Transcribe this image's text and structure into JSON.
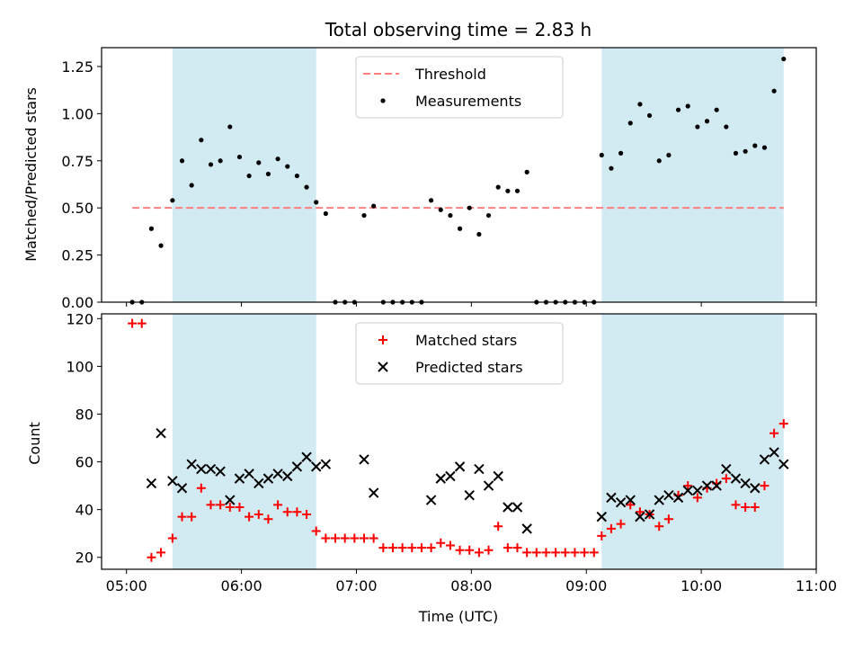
{
  "chart_data": [
    {
      "type": "scatter",
      "title": "Total observing time = 2.83 h",
      "ylabel": "Matched/Predicted stars",
      "xlabel": "",
      "xlim": [
        "04:47",
        "11:00"
      ],
      "ylim": [
        0,
        1.35
      ],
      "yticks": [
        0.0,
        0.25,
        0.5,
        0.75,
        1.0,
        1.25
      ],
      "ytick_labels": [
        "0.00",
        "0.25",
        "0.50",
        "0.75",
        "1.00",
        "1.25"
      ],
      "shaded_intervals": [
        [
          "05:24",
          "06:39"
        ],
        [
          "09:08",
          "10:43"
        ]
      ],
      "shade_color": "#add8e6",
      "threshold": {
        "label": "Threshold",
        "value": 0.5,
        "from": "05:03",
        "to": "10:43",
        "color": "#ff7f7f"
      },
      "legend": {
        "placement": "upper-center",
        "entries": [
          "Threshold",
          "Measurements"
        ]
      },
      "series": [
        {
          "name": "Measurements",
          "marker": "dot",
          "color": "#000000",
          "points": [
            [
              "05:03",
              0.0
            ],
            [
              "05:08",
              0.0
            ],
            [
              "05:13",
              0.39
            ],
            [
              "05:18",
              0.3
            ],
            [
              "05:24",
              0.54
            ],
            [
              "05:29",
              0.75
            ],
            [
              "05:34",
              0.62
            ],
            [
              "05:39",
              0.86
            ],
            [
              "05:44",
              0.73
            ],
            [
              "05:49",
              0.75
            ],
            [
              "05:54",
              0.93
            ],
            [
              "05:59",
              0.77
            ],
            [
              "06:04",
              0.67
            ],
            [
              "06:09",
              0.74
            ],
            [
              "06:14",
              0.68
            ],
            [
              "06:19",
              0.76
            ],
            [
              "06:24",
              0.72
            ],
            [
              "06:29",
              0.67
            ],
            [
              "06:34",
              0.61
            ],
            [
              "06:39",
              0.53
            ],
            [
              "06:44",
              0.47
            ],
            [
              "06:49",
              0.0
            ],
            [
              "06:54",
              0.0
            ],
            [
              "06:59",
              0.0
            ],
            [
              "07:04",
              0.46
            ],
            [
              "07:09",
              0.51
            ],
            [
              "07:14",
              0.0
            ],
            [
              "07:19",
              0.0
            ],
            [
              "07:24",
              0.0
            ],
            [
              "07:29",
              0.0
            ],
            [
              "07:34",
              0.0
            ],
            [
              "07:39",
              0.54
            ],
            [
              "07:44",
              0.49
            ],
            [
              "07:49",
              0.46
            ],
            [
              "07:54",
              0.39
            ],
            [
              "07:59",
              0.5
            ],
            [
              "08:04",
              0.36
            ],
            [
              "08:09",
              0.46
            ],
            [
              "08:14",
              0.61
            ],
            [
              "08:19",
              0.59
            ],
            [
              "08:24",
              0.59
            ],
            [
              "08:29",
              0.69
            ],
            [
              "08:34",
              0.0
            ],
            [
              "08:39",
              0.0
            ],
            [
              "08:44",
              0.0
            ],
            [
              "08:49",
              0.0
            ],
            [
              "08:54",
              0.0
            ],
            [
              "08:59",
              0.0
            ],
            [
              "09:04",
              0.0
            ],
            [
              "09:08",
              0.78
            ],
            [
              "09:13",
              0.71
            ],
            [
              "09:18",
              0.79
            ],
            [
              "09:23",
              0.95
            ],
            [
              "09:28",
              1.05
            ],
            [
              "09:33",
              0.99
            ],
            [
              "09:38",
              0.75
            ],
            [
              "09:43",
              0.78
            ],
            [
              "09:48",
              1.02
            ],
            [
              "09:53",
              1.04
            ],
            [
              "09:58",
              0.93
            ],
            [
              "10:03",
              0.96
            ],
            [
              "10:08",
              1.02
            ],
            [
              "10:13",
              0.93
            ],
            [
              "10:18",
              0.79
            ],
            [
              "10:23",
              0.8
            ],
            [
              "10:28",
              0.83
            ],
            [
              "10:33",
              0.82
            ],
            [
              "10:38",
              1.12
            ],
            [
              "10:43",
              1.29
            ]
          ]
        }
      ]
    },
    {
      "type": "scatter",
      "title": "",
      "ylabel": "Count",
      "xlabel": "Time (UTC)",
      "xlim": [
        "04:47",
        "11:00"
      ],
      "xticks": [
        "05:00",
        "06:00",
        "07:00",
        "08:00",
        "09:00",
        "10:00",
        "11:00"
      ],
      "ylim": [
        15,
        122
      ],
      "yticks": [
        20,
        40,
        60,
        80,
        100,
        120
      ],
      "shaded_intervals": [
        [
          "05:24",
          "06:39"
        ],
        [
          "09:08",
          "10:43"
        ]
      ],
      "shade_color": "#add8e6",
      "legend": {
        "placement": "upper-center",
        "entries": [
          "Matched stars",
          "Predicted stars"
        ]
      },
      "series": [
        {
          "name": "Matched stars",
          "marker": "plus",
          "color": "#ff0000",
          "points": [
            [
              "05:03",
              118
            ],
            [
              "05:08",
              118
            ],
            [
              "05:13",
              20
            ],
            [
              "05:18",
              22
            ],
            [
              "05:24",
              28
            ],
            [
              "05:29",
              37
            ],
            [
              "05:34",
              37
            ],
            [
              "05:39",
              49
            ],
            [
              "05:44",
              42
            ],
            [
              "05:49",
              42
            ],
            [
              "05:54",
              41
            ],
            [
              "05:59",
              41
            ],
            [
              "06:04",
              37
            ],
            [
              "06:09",
              38
            ],
            [
              "06:14",
              36
            ],
            [
              "06:19",
              42
            ],
            [
              "06:24",
              39
            ],
            [
              "06:29",
              39
            ],
            [
              "06:34",
              38
            ],
            [
              "06:39",
              31
            ],
            [
              "06:44",
              28
            ],
            [
              "06:49",
              28
            ],
            [
              "06:54",
              28
            ],
            [
              "06:59",
              28
            ],
            [
              "07:04",
              28
            ],
            [
              "07:09",
              28
            ],
            [
              "07:14",
              24
            ],
            [
              "07:19",
              24
            ],
            [
              "07:24",
              24
            ],
            [
              "07:29",
              24
            ],
            [
              "07:34",
              24
            ],
            [
              "07:39",
              24
            ],
            [
              "07:44",
              26
            ],
            [
              "07:49",
              25
            ],
            [
              "07:54",
              23
            ],
            [
              "07:59",
              23
            ],
            [
              "08:04",
              22
            ],
            [
              "08:09",
              23
            ],
            [
              "08:14",
              33
            ],
            [
              "08:19",
              24
            ],
            [
              "08:24",
              24
            ],
            [
              "08:29",
              22
            ],
            [
              "08:34",
              22
            ],
            [
              "08:39",
              22
            ],
            [
              "08:44",
              22
            ],
            [
              "08:49",
              22
            ],
            [
              "08:54",
              22
            ],
            [
              "08:59",
              22
            ],
            [
              "09:04",
              22
            ],
            [
              "09:08",
              29
            ],
            [
              "09:13",
              32
            ],
            [
              "09:18",
              34
            ],
            [
              "09:23",
              42
            ],
            [
              "09:28",
              39
            ],
            [
              "09:33",
              38
            ],
            [
              "09:38",
              33
            ],
            [
              "09:43",
              36
            ],
            [
              "09:48",
              46
            ],
            [
              "09:53",
              50
            ],
            [
              "09:58",
              45
            ],
            [
              "10:03",
              49
            ],
            [
              "10:08",
              51
            ],
            [
              "10:13",
              53
            ],
            [
              "10:18",
              42
            ],
            [
              "10:23",
              41
            ],
            [
              "10:28",
              41
            ],
            [
              "10:33",
              50
            ],
            [
              "10:38",
              72
            ],
            [
              "10:43",
              76
            ]
          ]
        },
        {
          "name": "Predicted stars",
          "marker": "x",
          "color": "#000000",
          "points": [
            [
              "05:13",
              51
            ],
            [
              "05:18",
              72
            ],
            [
              "05:24",
              52
            ],
            [
              "05:29",
              49
            ],
            [
              "05:34",
              59
            ],
            [
              "05:39",
              57
            ],
            [
              "05:44",
              57
            ],
            [
              "05:49",
              56
            ],
            [
              "05:54",
              44
            ],
            [
              "05:59",
              53
            ],
            [
              "06:04",
              55
            ],
            [
              "06:09",
              51
            ],
            [
              "06:14",
              53
            ],
            [
              "06:19",
              55
            ],
            [
              "06:24",
              54
            ],
            [
              "06:29",
              58
            ],
            [
              "06:34",
              62
            ],
            [
              "06:39",
              58
            ],
            [
              "06:44",
              59
            ],
            [
              "07:04",
              61
            ],
            [
              "07:09",
              47
            ],
            [
              "07:39",
              44
            ],
            [
              "07:44",
              53
            ],
            [
              "07:49",
              54
            ],
            [
              "07:54",
              58
            ],
            [
              "07:59",
              46
            ],
            [
              "08:04",
              57
            ],
            [
              "08:09",
              50
            ],
            [
              "08:14",
              54
            ],
            [
              "08:19",
              41
            ],
            [
              "08:24",
              41
            ],
            [
              "08:29",
              32
            ],
            [
              "09:08",
              37
            ],
            [
              "09:13",
              45
            ],
            [
              "09:18",
              43
            ],
            [
              "09:23",
              44
            ],
            [
              "09:28",
              37
            ],
            [
              "09:33",
              38
            ],
            [
              "09:38",
              44
            ],
            [
              "09:43",
              46
            ],
            [
              "09:48",
              45
            ],
            [
              "09:53",
              48
            ],
            [
              "09:58",
              48
            ],
            [
              "10:03",
              50
            ],
            [
              "10:08",
              50
            ],
            [
              "10:13",
              57
            ],
            [
              "10:18",
              53
            ],
            [
              "10:23",
              51
            ],
            [
              "10:28",
              49
            ],
            [
              "10:33",
              61
            ],
            [
              "10:38",
              64
            ],
            [
              "10:43",
              59
            ]
          ]
        }
      ]
    }
  ]
}
